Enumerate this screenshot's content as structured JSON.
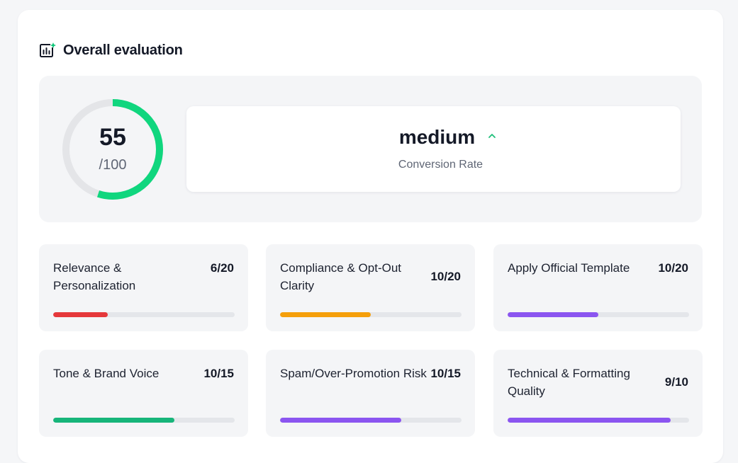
{
  "header": {
    "title": "Overall evaluation",
    "icon": "chart-sparkle-icon"
  },
  "overall": {
    "score": 55,
    "score_label": "55",
    "max_label": "/100",
    "progress": 0.55,
    "colors": {
      "progress": "#10d67e",
      "track": "#e4e5e8"
    }
  },
  "conversion": {
    "value": "medium",
    "label": "Conversion Rate",
    "trend_icon": "chevron-up-icon",
    "trend_color": "#1fbf7a"
  },
  "metrics": [
    {
      "name": "Relevance & Personalization",
      "score": "6/20",
      "fraction": 0.3,
      "color": "#e5383b"
    },
    {
      "name": "Compliance & Opt-Out Clarity",
      "score": "10/20",
      "fraction": 0.5,
      "color": "#f59f0b"
    },
    {
      "name": "Apply Official Template",
      "score": "10/20",
      "fraction": 0.5,
      "color": "#8b55f0"
    },
    {
      "name": "Tone & Brand Voice",
      "score": "10/15",
      "fraction": 0.667,
      "color": "#17b57a"
    },
    {
      "name": "Spam/Over-Promotion Risk",
      "score": "10/15",
      "fraction": 0.667,
      "color": "#8b55f0"
    },
    {
      "name": "Technical & Formatting Quality",
      "score": "9/10",
      "fraction": 0.9,
      "color": "#8b55f0"
    }
  ]
}
